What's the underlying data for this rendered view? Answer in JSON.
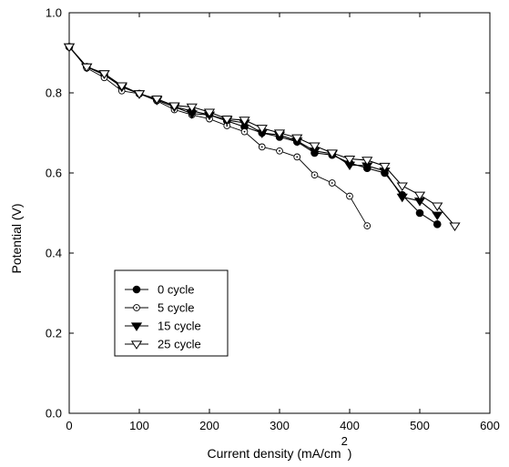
{
  "chart_data": {
    "type": "line",
    "xlabel": "Current density (mA/cm",
    "xlabel_superscript": "2",
    "xlabel_suffix": ")",
    "ylabel": "Potential (V)",
    "xlim": [
      0,
      600
    ],
    "ylim": [
      0.0,
      1.0
    ],
    "x_ticks": [
      0,
      100,
      200,
      300,
      400,
      500,
      600
    ],
    "y_ticks": [
      0.0,
      0.2,
      0.4,
      0.6,
      0.8,
      1.0
    ],
    "x_tick_labels": [
      "0",
      "100",
      "200",
      "300",
      "400",
      "500",
      "600"
    ],
    "y_tick_labels": [
      "0.0",
      "0.2",
      "0.4",
      "0.6",
      "0.8",
      "1.0"
    ],
    "grid": false,
    "legend_position": "bottom-left",
    "series": [
      {
        "name": "0 cycle",
        "marker": "filled-circle",
        "x": [
          0,
          25,
          50,
          75,
          100,
          125,
          150,
          175,
          200,
          225,
          250,
          275,
          300,
          325,
          350,
          375,
          400,
          425,
          450,
          475,
          500,
          525
        ],
        "y": [
          0.915,
          0.865,
          0.845,
          0.815,
          0.798,
          0.782,
          0.765,
          0.755,
          0.745,
          0.73,
          0.715,
          0.7,
          0.69,
          0.678,
          0.65,
          0.645,
          0.625,
          0.612,
          0.6,
          0.545,
          0.5,
          0.472
        ]
      },
      {
        "name": "5 cycle",
        "marker": "dotted-circle",
        "x": [
          0,
          25,
          50,
          75,
          100,
          125,
          150,
          175,
          200,
          225,
          250,
          275,
          300,
          325,
          350,
          375,
          400,
          425
        ],
        "y": [
          0.915,
          0.862,
          0.838,
          0.805,
          0.798,
          0.78,
          0.758,
          0.745,
          0.735,
          0.718,
          0.703,
          0.665,
          0.655,
          0.64,
          0.595,
          0.575,
          0.542,
          0.468
        ]
      },
      {
        "name": "15 cycle",
        "marker": "down-triangle-filled",
        "x": [
          0,
          25,
          50,
          75,
          100,
          125,
          150,
          175,
          200,
          225,
          250,
          275,
          300,
          325,
          350,
          375,
          400,
          425,
          450,
          475,
          500,
          525
        ],
        "y": [
          0.915,
          0.865,
          0.848,
          0.815,
          0.798,
          0.782,
          0.765,
          0.748,
          0.745,
          0.732,
          0.725,
          0.7,
          0.695,
          0.68,
          0.655,
          0.648,
          0.62,
          0.618,
          0.605,
          0.54,
          0.53,
          0.495
        ]
      },
      {
        "name": "25 cycle",
        "marker": "down-triangle-open",
        "x": [
          0,
          25,
          50,
          75,
          100,
          125,
          150,
          175,
          200,
          225,
          250,
          275,
          300,
          325,
          350,
          375,
          400,
          425,
          450,
          475,
          500,
          525,
          550
        ],
        "y": [
          0.915,
          0.865,
          0.848,
          0.818,
          0.798,
          0.785,
          0.768,
          0.765,
          0.752,
          0.735,
          0.732,
          0.712,
          0.7,
          0.688,
          0.668,
          0.65,
          0.635,
          0.632,
          0.617,
          0.568,
          0.545,
          0.518,
          0.468
        ]
      }
    ]
  }
}
